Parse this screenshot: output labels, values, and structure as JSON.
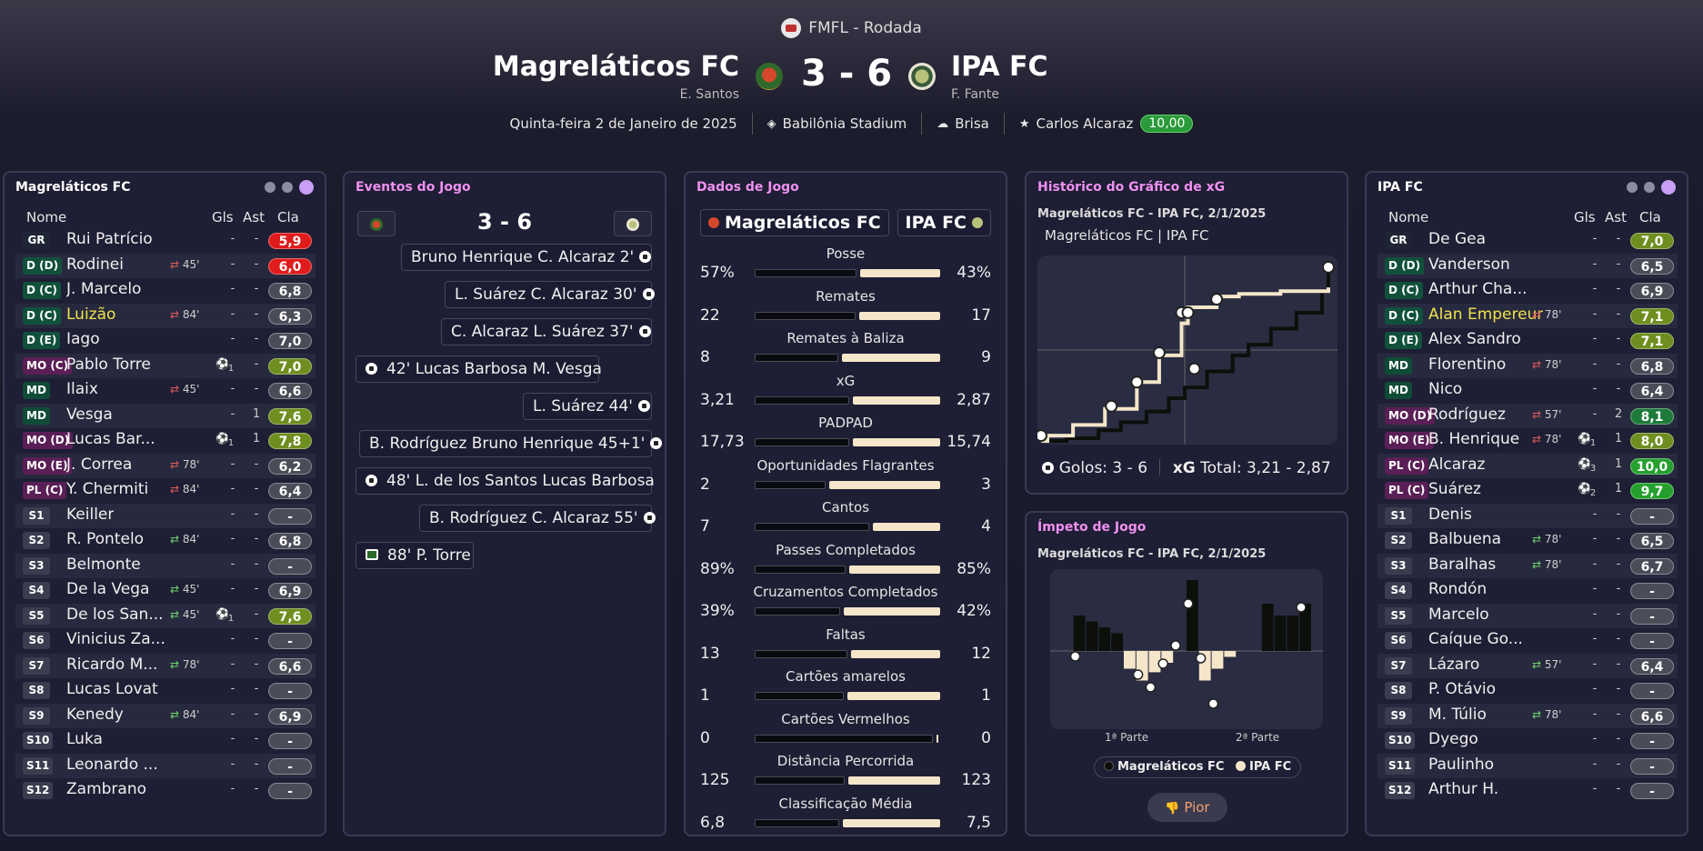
{
  "match": {
    "competition": "FMFL - Rodada",
    "home_name": "Magreláticos FC",
    "home_coach": "E. Santos",
    "away_name": "IPA FC",
    "away_coach": "F. Fante",
    "score": "3 - 6",
    "date": "Quinta-feira 2 de Janeiro de 2025",
    "stadium": "Babilônia Stadium",
    "weather": "Brisa",
    "potm_name": "Carlos Alcaraz",
    "potm_rating": "10,00"
  },
  "home_panel": {
    "title": "Magreláticos FC",
    "col_name": "Nome",
    "col_gls": "Gls",
    "col_ast": "Ast",
    "col_cla": "Cla",
    "players": [
      {
        "pos": "GR",
        "name": "Rui Patrício",
        "sub": "",
        "gls": "-",
        "ast": "-",
        "rating": "5,9",
        "rc": "red"
      },
      {
        "pos": "D (D)",
        "name": "Rodinei",
        "sub": "45'",
        "gls": "-",
        "ast": "-",
        "rating": "6,0",
        "rc": "red"
      },
      {
        "pos": "D (C)",
        "name": "J. Marcelo",
        "sub": "",
        "gls": "-",
        "ast": "-",
        "rating": "6,8",
        "rc": "gray"
      },
      {
        "pos": "D (C)",
        "name": "Luizão",
        "sub": "84'",
        "gls": "-",
        "ast": "-",
        "rating": "6,3",
        "rc": "gray",
        "hl": true
      },
      {
        "pos": "D (E)",
        "name": "Iago",
        "sub": "",
        "gls": "-",
        "ast": "-",
        "rating": "7,0",
        "rc": "gray"
      },
      {
        "pos": "MO (C)",
        "name": "Pablo Torre",
        "sub": "",
        "gls": "1",
        "ast": "-",
        "rating": "7,0",
        "rc": "olive"
      },
      {
        "pos": "MD",
        "name": "Ilaix",
        "sub": "45'",
        "gls": "-",
        "ast": "-",
        "rating": "6,6",
        "rc": "gray"
      },
      {
        "pos": "MD",
        "name": "Vesga",
        "sub": "",
        "gls": "-",
        "ast": "1",
        "rating": "7,6",
        "rc": "olive"
      },
      {
        "pos": "MO (D)",
        "name": "Lucas Bar...",
        "sub": "",
        "gls": "1",
        "ast": "1",
        "rating": "7,8",
        "rc": "olive"
      },
      {
        "pos": "MO (E)",
        "name": "J. Correa",
        "sub": "78'",
        "gls": "-",
        "ast": "-",
        "rating": "6,2",
        "rc": "gray"
      },
      {
        "pos": "PL (C)",
        "name": "Y. Chermiti",
        "sub": "84'",
        "gls": "-",
        "ast": "-",
        "rating": "6,4",
        "rc": "gray"
      },
      {
        "pos": "S1",
        "name": "Keiller",
        "sub": "",
        "gls": "-",
        "ast": "-",
        "rating": "-",
        "rc": "gray"
      },
      {
        "pos": "S2",
        "name": "R. Pontelo",
        "sub": "84'",
        "gls": "-",
        "ast": "-",
        "rating": "6,8",
        "rc": "gray"
      },
      {
        "pos": "S3",
        "name": "Belmonte",
        "sub": "",
        "gls": "-",
        "ast": "-",
        "rating": "-",
        "rc": "gray"
      },
      {
        "pos": "S4",
        "name": "De la Vega",
        "sub": "45'",
        "gls": "-",
        "ast": "-",
        "rating": "6,9",
        "rc": "gray"
      },
      {
        "pos": "S5",
        "name": "De los San...",
        "sub": "45'",
        "gls": "1",
        "ast": "-",
        "rating": "7,6",
        "rc": "olive"
      },
      {
        "pos": "S6",
        "name": "Vinicius Za...",
        "sub": "",
        "gls": "-",
        "ast": "-",
        "rating": "-",
        "rc": "gray"
      },
      {
        "pos": "S7",
        "name": "Ricardo M...",
        "sub": "78'",
        "gls": "-",
        "ast": "-",
        "rating": "6,6",
        "rc": "gray"
      },
      {
        "pos": "S8",
        "name": "Lucas Lovat",
        "sub": "",
        "gls": "-",
        "ast": "-",
        "rating": "-",
        "rc": "gray"
      },
      {
        "pos": "S9",
        "name": "Kenedy",
        "sub": "84'",
        "gls": "-",
        "ast": "-",
        "rating": "6,9",
        "rc": "gray"
      },
      {
        "pos": "S10",
        "name": "Luka",
        "sub": "",
        "gls": "-",
        "ast": "-",
        "rating": "-",
        "rc": "gray"
      },
      {
        "pos": "S11",
        "name": "Leonardo ...",
        "sub": "",
        "gls": "-",
        "ast": "-",
        "rating": "-",
        "rc": "gray"
      },
      {
        "pos": "S12",
        "name": "Zambrano",
        "sub": "",
        "gls": "-",
        "ast": "-",
        "rating": "-",
        "rc": "gray"
      }
    ]
  },
  "away_panel": {
    "title": "IPA FC",
    "col_name": "Nome",
    "col_gls": "Gls",
    "col_ast": "Ast",
    "col_cla": "Cla",
    "players": [
      {
        "pos": "GR",
        "name": "De Gea",
        "sub": "",
        "gls": "-",
        "ast": "-",
        "rating": "7,0",
        "rc": "olive"
      },
      {
        "pos": "D (D)",
        "name": "Vanderson",
        "sub": "",
        "gls": "-",
        "ast": "-",
        "rating": "6,5",
        "rc": "gray"
      },
      {
        "pos": "D (C)",
        "name": "Arthur Cha...",
        "sub": "",
        "gls": "-",
        "ast": "-",
        "rating": "6,9",
        "rc": "gray"
      },
      {
        "pos": "D (C)",
        "name": "Alan Empereur",
        "sub": "78'",
        "gls": "-",
        "ast": "-",
        "rating": "7,1",
        "rc": "olive",
        "hl": true
      },
      {
        "pos": "D (E)",
        "name": "Alex Sandro",
        "sub": "",
        "gls": "-",
        "ast": "-",
        "rating": "7,1",
        "rc": "olive"
      },
      {
        "pos": "MD",
        "name": "Florentino",
        "sub": "78'",
        "gls": "-",
        "ast": "-",
        "rating": "6,8",
        "rc": "gray"
      },
      {
        "pos": "MD",
        "name": "Nico",
        "sub": "",
        "gls": "-",
        "ast": "-",
        "rating": "6,4",
        "rc": "gray"
      },
      {
        "pos": "MO (D)",
        "name": "Rodríguez",
        "sub": "57'",
        "gls": "-",
        "ast": "2",
        "rating": "8,1",
        "rc": "dkgreen"
      },
      {
        "pos": "MO (E)",
        "name": "B. Henrique",
        "sub": "78'",
        "gls": "1",
        "ast": "1",
        "rating": "8,0",
        "rc": "olive"
      },
      {
        "pos": "PL (C)",
        "name": "Alcaraz",
        "sub": "",
        "gls": "3",
        "ast": "1",
        "rating": "10,0",
        "rc": "green"
      },
      {
        "pos": "PL (C)",
        "name": "Suárez",
        "sub": "",
        "gls": "2",
        "ast": "1",
        "rating": "9,7",
        "rc": "green"
      },
      {
        "pos": "S1",
        "name": "Denis",
        "sub": "",
        "gls": "-",
        "ast": "-",
        "rating": "-",
        "rc": "gray"
      },
      {
        "pos": "S2",
        "name": "Balbuena",
        "sub": "78'",
        "gls": "-",
        "ast": "-",
        "rating": "6,5",
        "rc": "gray"
      },
      {
        "pos": "S3",
        "name": "Baralhas",
        "sub": "78'",
        "gls": "-",
        "ast": "-",
        "rating": "6,7",
        "rc": "gray"
      },
      {
        "pos": "S4",
        "name": "Rondón",
        "sub": "",
        "gls": "-",
        "ast": "-",
        "rating": "-",
        "rc": "gray"
      },
      {
        "pos": "S5",
        "name": "Marcelo",
        "sub": "",
        "gls": "-",
        "ast": "-",
        "rating": "-",
        "rc": "gray"
      },
      {
        "pos": "S6",
        "name": "Caíque Go...",
        "sub": "",
        "gls": "-",
        "ast": "-",
        "rating": "-",
        "rc": "gray"
      },
      {
        "pos": "S7",
        "name": "Lázaro",
        "sub": "57'",
        "gls": "-",
        "ast": "-",
        "rating": "6,4",
        "rc": "gray"
      },
      {
        "pos": "S8",
        "name": "P. Otávio",
        "sub": "",
        "gls": "-",
        "ast": "-",
        "rating": "-",
        "rc": "gray"
      },
      {
        "pos": "S9",
        "name": "M. Túlio",
        "sub": "78'",
        "gls": "-",
        "ast": "-",
        "rating": "6,6",
        "rc": "gray"
      },
      {
        "pos": "S10",
        "name": "Dyego",
        "sub": "",
        "gls": "-",
        "ast": "-",
        "rating": "-",
        "rc": "gray"
      },
      {
        "pos": "S11",
        "name": "Paulinho",
        "sub": "",
        "gls": "-",
        "ast": "-",
        "rating": "-",
        "rc": "gray"
      },
      {
        "pos": "S12",
        "name": "Arthur H.",
        "sub": "",
        "gls": "-",
        "ast": "-",
        "rating": "-",
        "rc": "gray"
      }
    ]
  },
  "events_panel": {
    "title": "Eventos do Jogo",
    "score": "3 - 6",
    "events": [
      {
        "side": "away",
        "type": "goal",
        "text": "Bruno Henrique C. Alcaraz 2'"
      },
      {
        "side": "away",
        "type": "goal",
        "text": "L. Suárez C. Alcaraz 30'"
      },
      {
        "side": "away",
        "type": "goal",
        "text": "C. Alcaraz L. Suárez 37'"
      },
      {
        "side": "home",
        "type": "goal",
        "text": "42' Lucas Barbosa M. Vesga"
      },
      {
        "side": "away",
        "type": "goal",
        "text": "L. Suárez 44'"
      },
      {
        "side": "away",
        "type": "goal",
        "text": "B. Rodríguez Bruno Henrique 45+1'"
      },
      {
        "side": "home",
        "type": "goal",
        "text": "48' L. de los Santos Lucas Barbosa"
      },
      {
        "side": "away",
        "type": "goal",
        "text": "B. Rodríguez C. Alcaraz 55'"
      },
      {
        "side": "home",
        "type": "card",
        "text": "88' P. Torre"
      }
    ]
  },
  "stats_panel": {
    "title": "Dados de Jogo",
    "home_team": "Magreláticos FC",
    "away_team": "IPA FC",
    "stats": [
      {
        "label": "Posse",
        "home": "57%",
        "away": "43%",
        "hv": 57,
        "av": 43
      },
      {
        "label": "Remates",
        "home": "22",
        "away": "17",
        "hv": 22,
        "av": 17
      },
      {
        "label": "Remates à Baliza",
        "home": "8",
        "away": "9",
        "hv": 8,
        "av": 9
      },
      {
        "label": "xG",
        "home": "3,21",
        "away": "2,87",
        "hv": 3.21,
        "av": 2.87
      },
      {
        "label": "PADPAD",
        "home": "17,73",
        "away": "15,74",
        "hv": 17.73,
        "av": 15.74
      },
      {
        "label": "Oportunidades Flagrantes",
        "home": "2",
        "away": "3",
        "hv": 2,
        "av": 3
      },
      {
        "label": "Cantos",
        "home": "7",
        "away": "4",
        "hv": 7,
        "av": 4
      },
      {
        "label": "Passes Completados",
        "home": "89%",
        "away": "85%",
        "hv": 89,
        "av": 85
      },
      {
        "label": "Cruzamentos Completados",
        "home": "39%",
        "away": "42%",
        "hv": 39,
        "av": 42
      },
      {
        "label": "Faltas",
        "home": "13",
        "away": "12",
        "hv": 13,
        "av": 12
      },
      {
        "label": "Cartões amarelos",
        "home": "1",
        "away": "1",
        "hv": 1,
        "av": 1
      },
      {
        "label": "Cartões Vermelhos",
        "home": "0",
        "away": "0",
        "hv": 0,
        "av": 0
      },
      {
        "label": "Distância Percorrida",
        "home": "125",
        "away": "123",
        "hv": 125,
        "av": 123
      },
      {
        "label": "Classificação Média",
        "home": "6,8",
        "away": "7,5",
        "hv": 6.8,
        "av": 7.5
      }
    ]
  },
  "xg_panel": {
    "title": "Histórico do Gráfico de xG",
    "subtitle": "Magreláticos FC - IPA FC, 2/1/2025",
    "tab_label": "Magreláticos FC | IPA FC",
    "goals_text": "Golos: 3 - 6",
    "xg_label": "xG",
    "xg_total_text": "Total: 3,21 - 2,87"
  },
  "momentum_panel": {
    "title": "Ímpeto de Jogo",
    "subtitle": "Magreláticos FC - IPA FC, 2/1/2025",
    "first_half": "1ª Parte",
    "second_half": "2ª Parte",
    "legend_home": "Magreláticos FC",
    "legend_away": "IPA FC",
    "button_label": "Pior"
  },
  "colors": {
    "home_series": "#0d0f0b",
    "away_series": "#f5e6ca",
    "accent_title": "#f090f0",
    "potm_badge": "#2a9a3a"
  },
  "chart_data": [
    {
      "type": "line",
      "title": "Histórico do Gráfico de xG",
      "series": [
        {
          "name": "Magreláticos FC",
          "color": "#0d0f0b",
          "x": [
            0,
            8,
            18,
            25,
            33,
            40,
            45,
            52,
            60,
            65,
            72,
            80,
            88,
            90
          ],
          "y": [
            0,
            0.05,
            0.2,
            0.35,
            0.55,
            0.8,
            1.0,
            1.3,
            1.6,
            1.8,
            2.1,
            2.4,
            2.8,
            3.21
          ]
        },
        {
          "name": "IPA FC",
          "color": "#f5e6ca",
          "x": [
            0,
            2,
            10,
            20,
            30,
            37,
            44,
            46,
            55,
            62,
            75,
            90
          ],
          "y": [
            0,
            0.1,
            0.3,
            0.6,
            1.1,
            1.6,
            2.2,
            2.5,
            2.7,
            2.75,
            2.8,
            2.87
          ]
        }
      ],
      "goals": {
        "home": 3,
        "away": 6
      },
      "xlim": [
        0,
        90
      ]
    },
    {
      "type": "bar",
      "title": "Ímpeto de Jogo",
      "categories": [
        "1",
        "2",
        "3",
        "4",
        "5",
        "6",
        "7",
        "8",
        "9",
        "10",
        "11",
        "12",
        "13",
        "14",
        "15",
        "16",
        "17",
        "18",
        "19",
        "20"
      ],
      "series": [
        {
          "name": "Magreláticos FC",
          "values": [
            0,
            3,
            2.5,
            2,
            1.5,
            0,
            0,
            0,
            0,
            0,
            6,
            0,
            0,
            0,
            0,
            0,
            4,
            3,
            3,
            4
          ]
        },
        {
          "name": "IPA FC",
          "values": [
            0,
            0,
            0,
            0,
            0,
            1.5,
            2.5,
            1.8,
            1,
            0,
            0,
            2.5,
            1.5,
            0.5,
            0,
            0,
            0,
            0,
            0,
            0
          ]
        }
      ]
    }
  ]
}
